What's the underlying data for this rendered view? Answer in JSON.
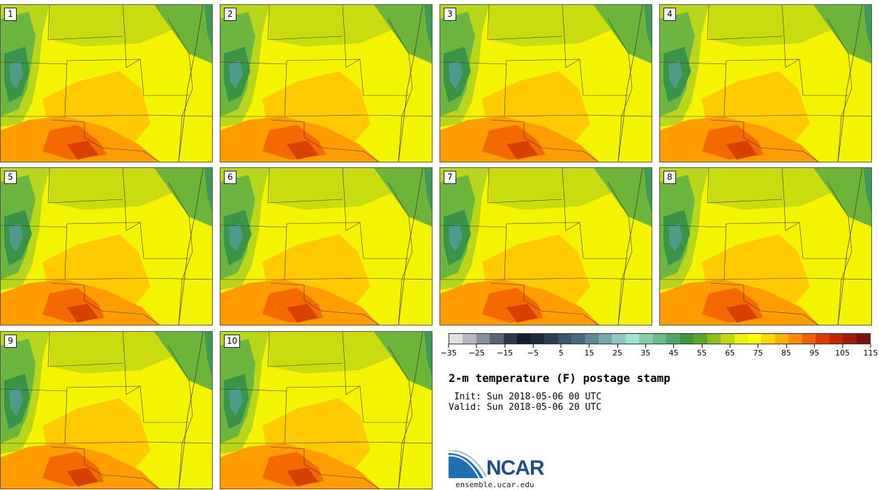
{
  "panels": [
    {
      "label": "1"
    },
    {
      "label": "2"
    },
    {
      "label": "3"
    },
    {
      "label": "4"
    },
    {
      "label": "5"
    },
    {
      "label": "6"
    },
    {
      "label": "7"
    },
    {
      "label": "8"
    },
    {
      "label": "9"
    },
    {
      "label": "10"
    }
  ],
  "colorbar": {
    "colors": [
      "#dfe0e3",
      "#b4b7bc",
      "#8a8e9a",
      "#5e6478",
      "#2e3650",
      "#101a30",
      "#1c2a3e",
      "#2b3f55",
      "#3a556c",
      "#496b80",
      "#5c8897",
      "#73a7ae",
      "#8fc9c4",
      "#9fe3d3",
      "#84cfa8",
      "#6abb87",
      "#4ea865",
      "#3d963d",
      "#5aa62c",
      "#8bbf1d",
      "#c2d912",
      "#eef20a",
      "#ffff00",
      "#ffd600",
      "#ffb000",
      "#ff8c00",
      "#f56000",
      "#e23a00",
      "#c82400",
      "#a11a0a",
      "#7f1208"
    ],
    "ticks": [
      "−35",
      "−25",
      "−15",
      "−5",
      "5",
      "15",
      "25",
      "35",
      "45",
      "55",
      "65",
      "75",
      "85",
      "95",
      "105",
      "115"
    ]
  },
  "title": "2-m temperature (F) postage stamp",
  "init": " Init: Sun 2018-05-06 00 UTC",
  "valid": "Valid: Sun 2018-05-06 20 UTC",
  "logo": {
    "text": "NCAR",
    "site": "ensemble.ucar.edu",
    "brand_color": "#1f4e8c"
  }
}
